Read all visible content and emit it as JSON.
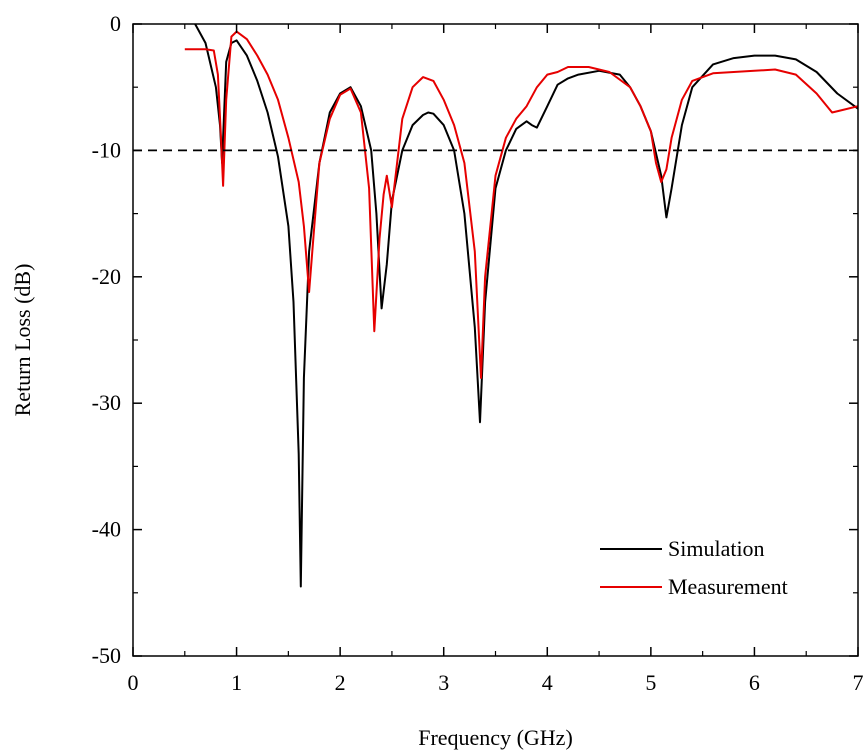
{
  "chart_data": {
    "type": "line",
    "title": "",
    "xlabel": "Frequency (GHz)",
    "ylabel": "Return Loss (dB)",
    "xlim": [
      0,
      7
    ],
    "ylim": [
      -50,
      0
    ],
    "x_ticks": [
      0,
      1,
      2,
      3,
      4,
      5,
      6,
      7
    ],
    "y_ticks": [
      0,
      -10,
      -20,
      -30,
      -40,
      -50
    ],
    "x_tick_labels": [
      "0",
      "1",
      "2",
      "3",
      "4",
      "5",
      "6",
      "7"
    ],
    "y_tick_labels": [
      "0",
      "-10",
      "-20",
      "-30",
      "-40",
      "-50"
    ],
    "grid": false,
    "legend_position": "bottom-right",
    "reference_line": {
      "y": -10,
      "style": "dashed"
    },
    "series": [
      {
        "name": "Simulation",
        "color": "#000000",
        "points": [
          [
            0.6,
            0
          ],
          [
            0.7,
            -1.5
          ],
          [
            0.8,
            -5
          ],
          [
            0.84,
            -8
          ],
          [
            0.86,
            -11
          ],
          [
            0.87,
            -9
          ],
          [
            0.9,
            -3
          ],
          [
            0.95,
            -1.5
          ],
          [
            1.0,
            -1.3
          ],
          [
            1.1,
            -2.5
          ],
          [
            1.2,
            -4.5
          ],
          [
            1.3,
            -7
          ],
          [
            1.4,
            -10.5
          ],
          [
            1.5,
            -16
          ],
          [
            1.55,
            -22
          ],
          [
            1.6,
            -34
          ],
          [
            1.62,
            -44.5
          ],
          [
            1.65,
            -28
          ],
          [
            1.7,
            -18
          ],
          [
            1.8,
            -11
          ],
          [
            1.9,
            -7
          ],
          [
            2.0,
            -5.5
          ],
          [
            2.1,
            -5
          ],
          [
            2.2,
            -6.5
          ],
          [
            2.3,
            -10
          ],
          [
            2.35,
            -15
          ],
          [
            2.4,
            -22.5
          ],
          [
            2.45,
            -19
          ],
          [
            2.5,
            -14
          ],
          [
            2.6,
            -10
          ],
          [
            2.7,
            -8
          ],
          [
            2.8,
            -7.2
          ],
          [
            2.85,
            -7
          ],
          [
            2.9,
            -7.1
          ],
          [
            3.0,
            -8
          ],
          [
            3.1,
            -10
          ],
          [
            3.2,
            -15
          ],
          [
            3.3,
            -24
          ],
          [
            3.35,
            -31.5
          ],
          [
            3.4,
            -22
          ],
          [
            3.5,
            -13
          ],
          [
            3.6,
            -10
          ],
          [
            3.7,
            -8.3
          ],
          [
            3.8,
            -7.7
          ],
          [
            3.85,
            -8
          ],
          [
            3.9,
            -8.2
          ],
          [
            4.0,
            -6.5
          ],
          [
            4.1,
            -4.8
          ],
          [
            4.2,
            -4.3
          ],
          [
            4.3,
            -4
          ],
          [
            4.5,
            -3.7
          ],
          [
            4.7,
            -4
          ],
          [
            4.8,
            -5
          ],
          [
            4.9,
            -6.5
          ],
          [
            5.0,
            -8.5
          ],
          [
            5.1,
            -12
          ],
          [
            5.15,
            -15.3
          ],
          [
            5.2,
            -13
          ],
          [
            5.3,
            -8
          ],
          [
            5.4,
            -5
          ],
          [
            5.6,
            -3.2
          ],
          [
            5.8,
            -2.7
          ],
          [
            6.0,
            -2.5
          ],
          [
            6.2,
            -2.5
          ],
          [
            6.4,
            -2.8
          ],
          [
            6.6,
            -3.8
          ],
          [
            6.8,
            -5.5
          ],
          [
            7.0,
            -6.7
          ]
        ]
      },
      {
        "name": "Measurement",
        "color": "#e60000",
        "points": [
          [
            0.5,
            -2
          ],
          [
            0.7,
            -2
          ],
          [
            0.78,
            -2.1
          ],
          [
            0.82,
            -4
          ],
          [
            0.85,
            -9
          ],
          [
            0.87,
            -12.8
          ],
          [
            0.9,
            -6
          ],
          [
            0.95,
            -1
          ],
          [
            1.0,
            -0.6
          ],
          [
            1.1,
            -1.2
          ],
          [
            1.2,
            -2.5
          ],
          [
            1.3,
            -4
          ],
          [
            1.4,
            -6
          ],
          [
            1.5,
            -9
          ],
          [
            1.6,
            -12.5
          ],
          [
            1.65,
            -16
          ],
          [
            1.7,
            -21.2
          ],
          [
            1.75,
            -16
          ],
          [
            1.8,
            -11
          ],
          [
            1.9,
            -7.5
          ],
          [
            2.0,
            -5.6
          ],
          [
            2.1,
            -5.1
          ],
          [
            2.2,
            -7
          ],
          [
            2.28,
            -13
          ],
          [
            2.33,
            -24.3
          ],
          [
            2.38,
            -17
          ],
          [
            2.42,
            -13.5
          ],
          [
            2.45,
            -12
          ],
          [
            2.5,
            -14.5
          ],
          [
            2.55,
            -11
          ],
          [
            2.6,
            -7.5
          ],
          [
            2.7,
            -5
          ],
          [
            2.8,
            -4.2
          ],
          [
            2.9,
            -4.5
          ],
          [
            3.0,
            -6
          ],
          [
            3.1,
            -8
          ],
          [
            3.2,
            -11
          ],
          [
            3.3,
            -18
          ],
          [
            3.36,
            -28
          ],
          [
            3.4,
            -20
          ],
          [
            3.5,
            -12
          ],
          [
            3.6,
            -9
          ],
          [
            3.7,
            -7.5
          ],
          [
            3.8,
            -6.5
          ],
          [
            3.9,
            -5
          ],
          [
            4.0,
            -4
          ],
          [
            4.1,
            -3.8
          ],
          [
            4.2,
            -3.4
          ],
          [
            4.4,
            -3.4
          ],
          [
            4.6,
            -3.8
          ],
          [
            4.8,
            -5
          ],
          [
            4.9,
            -6.5
          ],
          [
            5.0,
            -8.5
          ],
          [
            5.05,
            -11
          ],
          [
            5.1,
            -12.5
          ],
          [
            5.15,
            -11.5
          ],
          [
            5.2,
            -9
          ],
          [
            5.3,
            -6
          ],
          [
            5.4,
            -4.5
          ],
          [
            5.6,
            -3.9
          ],
          [
            5.8,
            -3.8
          ],
          [
            6.0,
            -3.7
          ],
          [
            6.2,
            -3.6
          ],
          [
            6.4,
            -4
          ],
          [
            6.6,
            -5.5
          ],
          [
            6.75,
            -7
          ],
          [
            6.85,
            -6.8
          ],
          [
            7.0,
            -6.5
          ]
        ]
      }
    ]
  }
}
